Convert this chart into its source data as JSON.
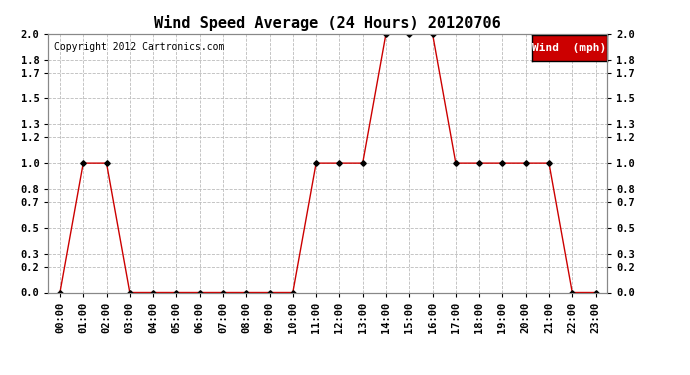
{
  "title": "Wind Speed Average (24 Hours) 20120706",
  "copyright": "Copyright 2012 Cartronics.com",
  "legend_label": "Wind  (mph)",
  "hours": [
    "00:00",
    "01:00",
    "02:00",
    "03:00",
    "04:00",
    "05:00",
    "06:00",
    "07:00",
    "08:00",
    "09:00",
    "10:00",
    "11:00",
    "12:00",
    "13:00",
    "14:00",
    "15:00",
    "16:00",
    "17:00",
    "18:00",
    "19:00",
    "20:00",
    "21:00",
    "22:00",
    "23:00"
  ],
  "wind_values": [
    0.0,
    1.0,
    1.0,
    0.0,
    0.0,
    0.0,
    0.0,
    0.0,
    0.0,
    0.0,
    0.0,
    1.0,
    1.0,
    1.0,
    2.0,
    2.0,
    2.0,
    1.0,
    1.0,
    1.0,
    1.0,
    1.0,
    0.0,
    0.0
  ],
  "line_color": "#cc0000",
  "marker_color": "#000000",
  "bg_color": "#ffffff",
  "grid_color": "#bbbbbb",
  "ylim": [
    0.0,
    2.0
  ],
  "yticks": [
    0.0,
    0.2,
    0.3,
    0.5,
    0.7,
    0.8,
    1.0,
    1.2,
    1.3,
    1.5,
    1.7,
    1.8,
    2.0
  ],
  "title_fontsize": 11,
  "copyright_fontsize": 7,
  "legend_fontsize": 8,
  "tick_fontsize": 7.5
}
